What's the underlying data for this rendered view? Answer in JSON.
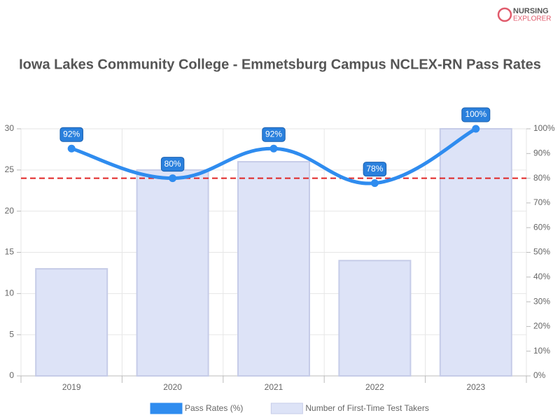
{
  "chart_data": {
    "type": "combo",
    "title": "Iowa Lakes Community College - Emmetsburg Campus NCLEX-RN Pass Rates",
    "logo": [
      "NURSING",
      "EXPLORER"
    ],
    "categories": [
      "2019",
      "2020",
      "2021",
      "2022",
      "2023"
    ],
    "series": [
      {
        "name": "Pass Rates (%)",
        "type": "line",
        "axis": "y2",
        "color": "#2f8cef",
        "values": [
          92,
          80,
          92,
          78,
          100
        ],
        "value_labels": [
          "92%",
          "80%",
          "92%",
          "78%",
          "100%"
        ]
      },
      {
        "name": "Number of First-Time Test Takers",
        "type": "bar",
        "color": "#dde3f7",
        "values": [
          13,
          25,
          26,
          14,
          30
        ]
      }
    ],
    "ylim": [
      0,
      30
    ],
    "yticks": [
      0,
      5,
      10,
      15,
      20,
      25,
      30
    ],
    "y2lim": [
      0,
      100
    ],
    "y2ticks": [
      {
        "value": 0,
        "label": "0%"
      },
      {
        "value": 10,
        "label": "10%"
      },
      {
        "value": 20,
        "label": "20%"
      },
      {
        "value": 30,
        "label": "30%"
      },
      {
        "value": 40,
        "label": "40%"
      },
      {
        "value": 50,
        "label": "50%"
      },
      {
        "value": 60,
        "label": "60%"
      },
      {
        "value": 70,
        "label": "70%"
      },
      {
        "value": 80,
        "label": "80%"
      },
      {
        "value": 90,
        "label": "90%"
      },
      {
        "value": 100,
        "label": "100%"
      }
    ],
    "reference_line": {
      "value": 80,
      "axis": "y2",
      "color": "#e02424"
    },
    "grid": true
  }
}
